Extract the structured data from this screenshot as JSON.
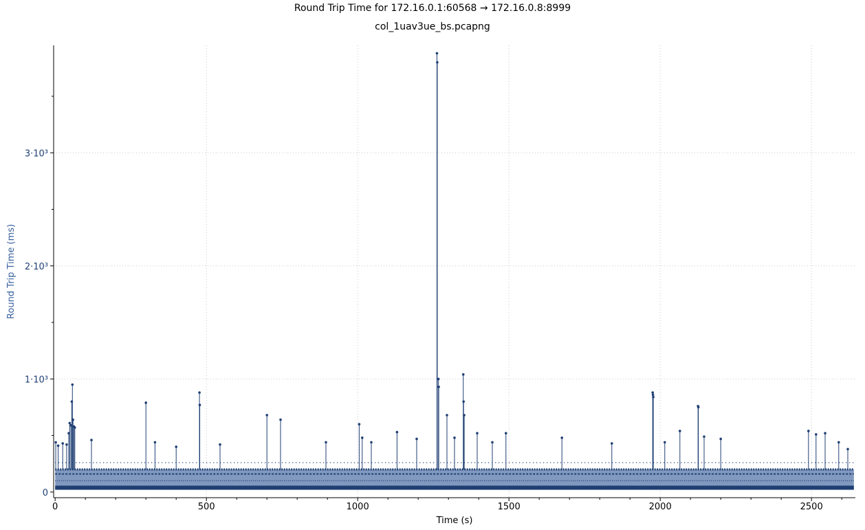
{
  "title": "Round Trip Time for 172.16.0.1:60568 → 172.16.0.8:8999",
  "subtitle": "col_1uav3ue_bs.pcapng",
  "colors": {
    "series": "#1f3f73",
    "fill": "#6b87b4",
    "grid": "#c8c8c8",
    "ylabel": "#3a62a0"
  },
  "chart_data": {
    "type": "line",
    "title": "Round Trip Time for 172.16.0.1:60568 → 172.16.0.8:8999",
    "subtitle": "col_1uav3ue_bs.pcapng",
    "xlabel": "Time (s)",
    "ylabel": "Round Trip Time (ms)",
    "xlim": [
      -5,
      2645
    ],
    "ylim": [
      -50,
      3950
    ],
    "grid": true,
    "x_ticks": [
      0,
      500,
      1000,
      1500,
      2000,
      2500
    ],
    "x_tick_labels": [
      "0",
      "500",
      "1000",
      "1500",
      "2000",
      "2500"
    ],
    "y_ticks": [
      0,
      1000,
      2000,
      3000
    ],
    "y_tick_labels": [
      "0",
      "1·10³",
      "2·10³",
      "3·10³"
    ],
    "series": [
      {
        "baseline_band": [
          20,
          200
        ],
        "spikes": [
          {
            "x": 2,
            "y": 440
          },
          {
            "x": 10,
            "y": 410
          },
          {
            "x": 25,
            "y": 430
          },
          {
            "x": 38,
            "y": 420
          },
          {
            "x": 45,
            "y": 520
          },
          {
            "x": 48,
            "y": 610
          },
          {
            "x": 52,
            "y": 590
          },
          {
            "x": 55,
            "y": 800
          },
          {
            "x": 57,
            "y": 950
          },
          {
            "x": 59,
            "y": 640
          },
          {
            "x": 62,
            "y": 580
          },
          {
            "x": 65,
            "y": 570
          },
          {
            "x": 120,
            "y": 460
          },
          {
            "x": 300,
            "y": 790
          },
          {
            "x": 330,
            "y": 440
          },
          {
            "x": 400,
            "y": 400
          },
          {
            "x": 477,
            "y": 880
          },
          {
            "x": 478,
            "y": 770
          },
          {
            "x": 545,
            "y": 420
          },
          {
            "x": 700,
            "y": 680
          },
          {
            "x": 745,
            "y": 640
          },
          {
            "x": 895,
            "y": 440
          },
          {
            "x": 1005,
            "y": 600
          },
          {
            "x": 1015,
            "y": 480
          },
          {
            "x": 1045,
            "y": 440
          },
          {
            "x": 1130,
            "y": 530
          },
          {
            "x": 1195,
            "y": 470
          },
          {
            "x": 1262,
            "y": 3880
          },
          {
            "x": 1263,
            "y": 3800
          },
          {
            "x": 1267,
            "y": 1000
          },
          {
            "x": 1268,
            "y": 930
          },
          {
            "x": 1295,
            "y": 680
          },
          {
            "x": 1320,
            "y": 480
          },
          {
            "x": 1349,
            "y": 1040
          },
          {
            "x": 1350,
            "y": 800
          },
          {
            "x": 1352,
            "y": 680
          },
          {
            "x": 1395,
            "y": 520
          },
          {
            "x": 1445,
            "y": 440
          },
          {
            "x": 1490,
            "y": 520
          },
          {
            "x": 1675,
            "y": 480
          },
          {
            "x": 1840,
            "y": 430
          },
          {
            "x": 1975,
            "y": 880
          },
          {
            "x": 1976,
            "y": 860
          },
          {
            "x": 1977,
            "y": 840
          },
          {
            "x": 2015,
            "y": 440
          },
          {
            "x": 2065,
            "y": 540
          },
          {
            "x": 2125,
            "y": 760
          },
          {
            "x": 2126,
            "y": 750
          },
          {
            "x": 2145,
            "y": 490
          },
          {
            "x": 2200,
            "y": 470
          },
          {
            "x": 2490,
            "y": 540
          },
          {
            "x": 2515,
            "y": 510
          },
          {
            "x": 2545,
            "y": 520
          },
          {
            "x": 2590,
            "y": 440
          },
          {
            "x": 2620,
            "y": 380
          }
        ]
      }
    ]
  }
}
